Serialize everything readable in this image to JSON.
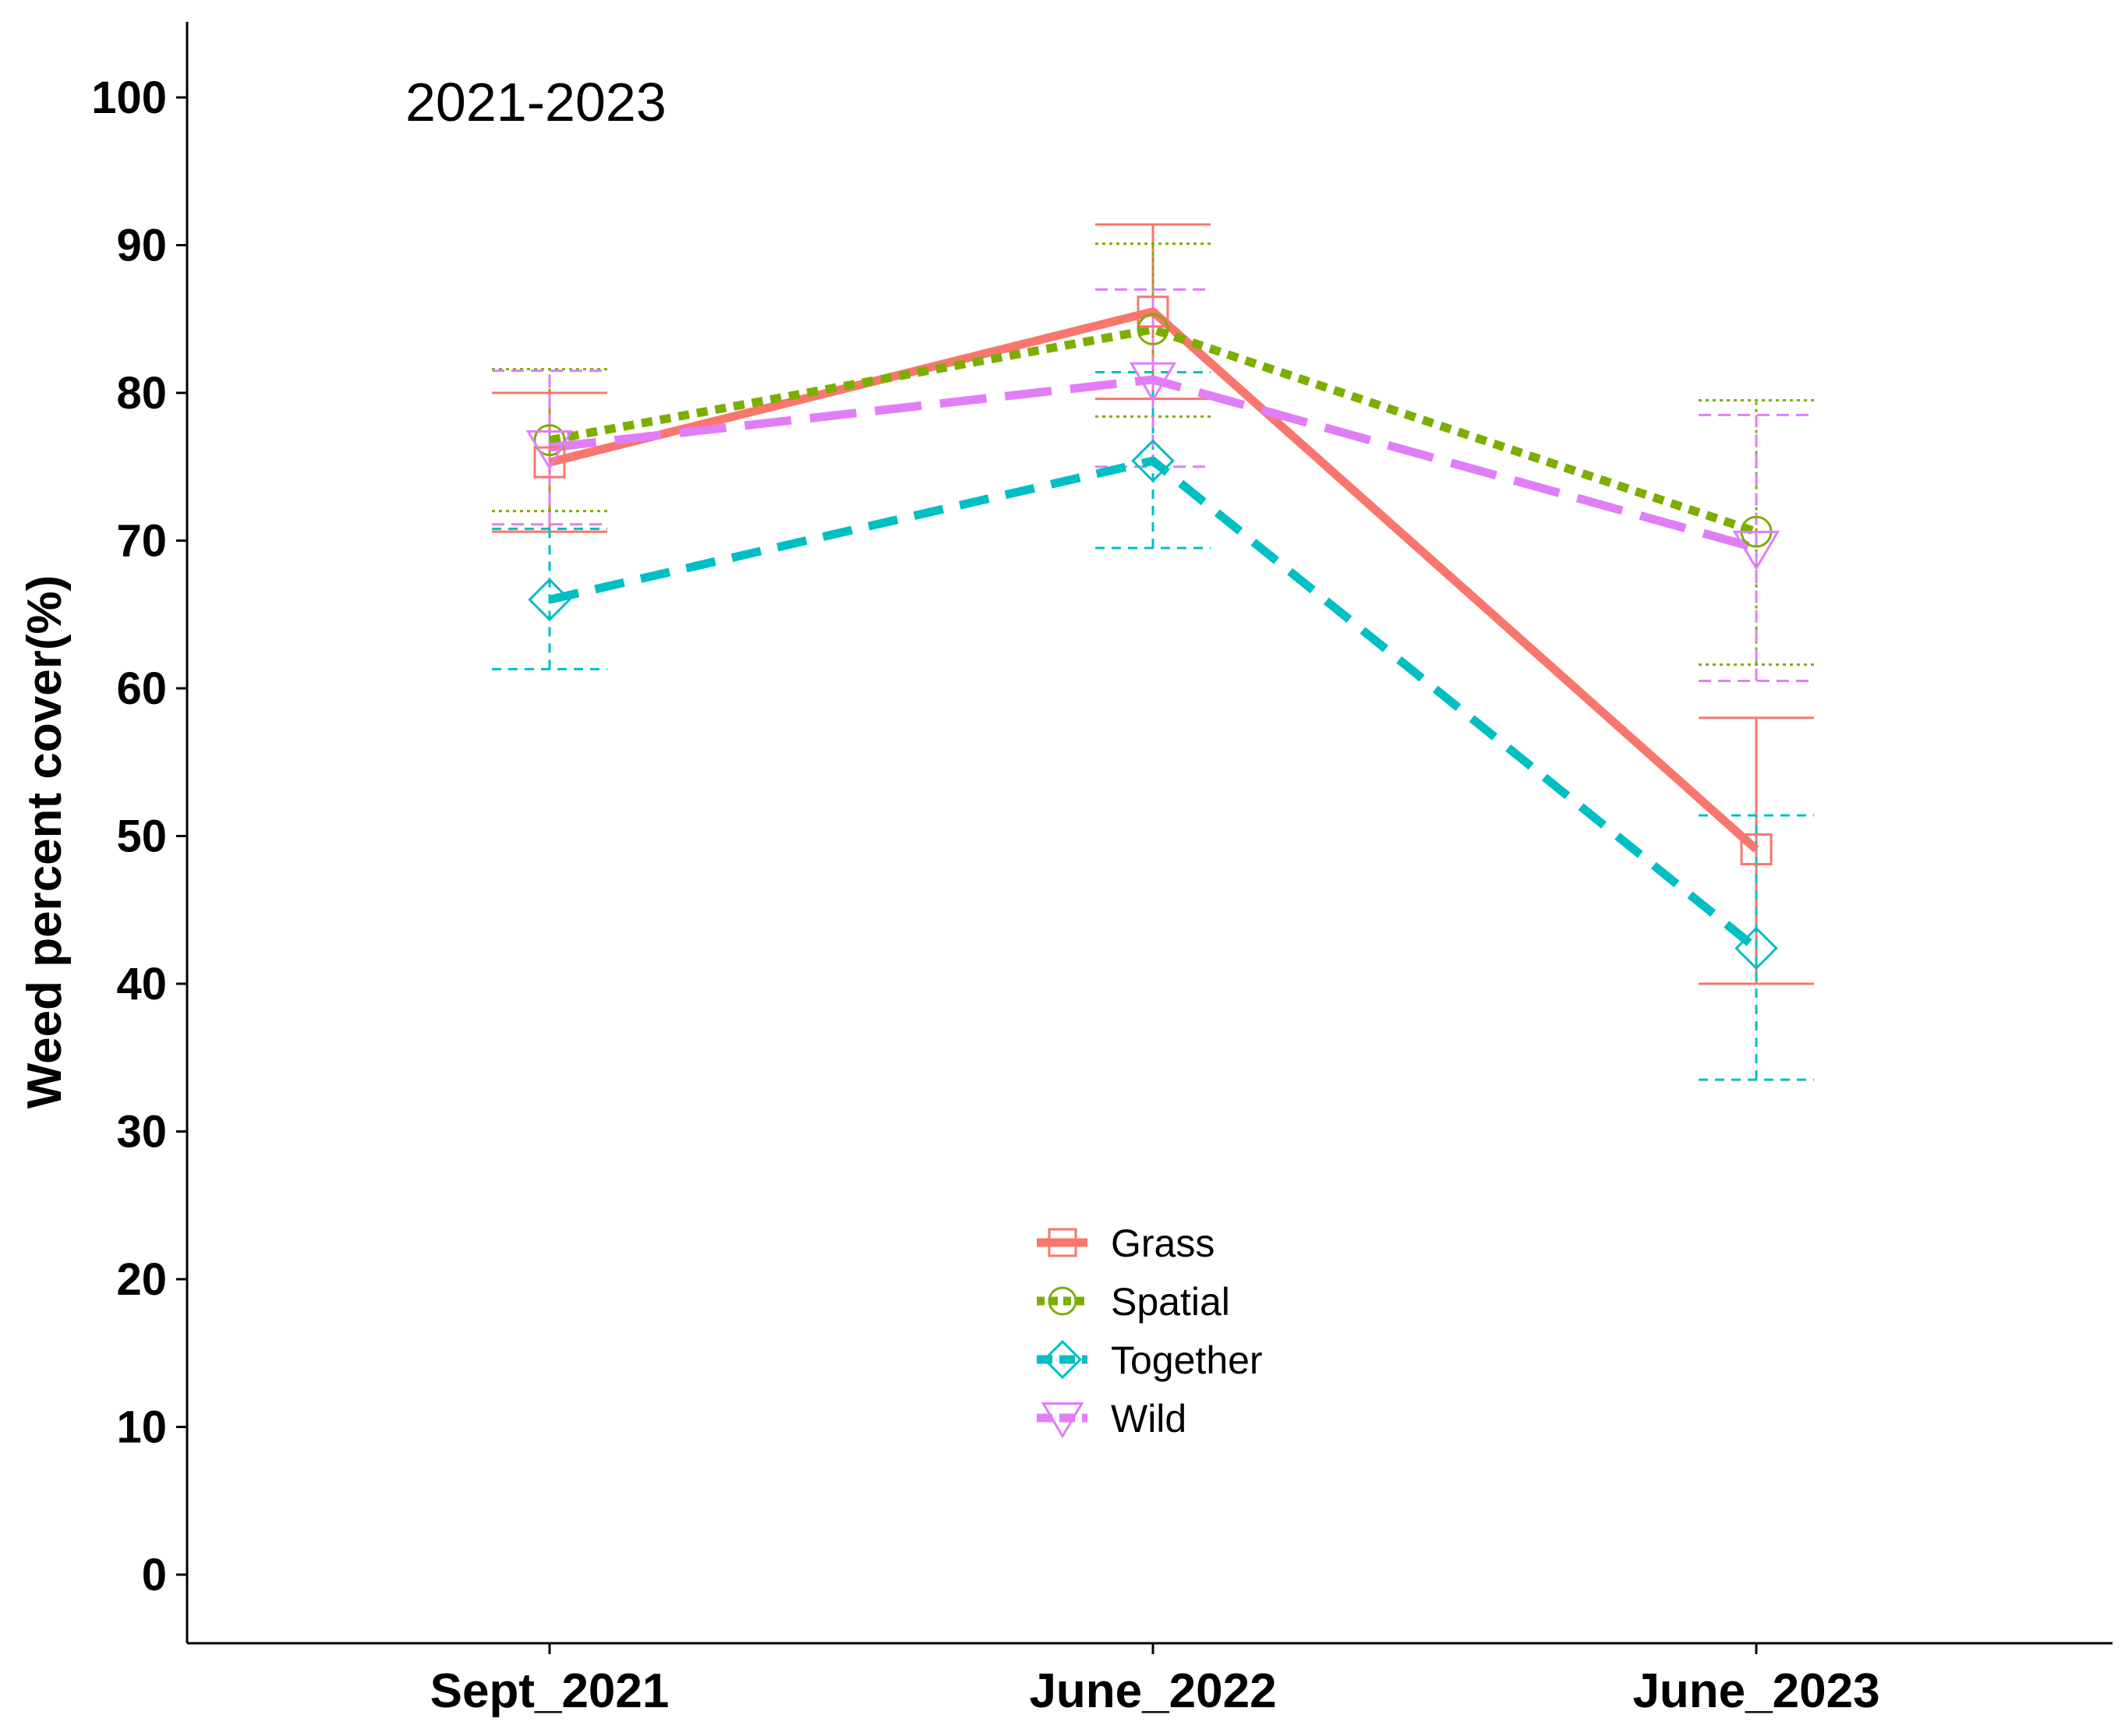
{
  "chart_data": {
    "type": "line",
    "title": "2021-2023",
    "xlabel": "",
    "ylabel": "Weed percent cover(%)",
    "categories": [
      "Sept_2021",
      "June_2022",
      "June_2023"
    ],
    "ylim": [
      -5,
      105
    ],
    "yticks": [
      0,
      10,
      20,
      30,
      40,
      50,
      60,
      70,
      80,
      90,
      100
    ],
    "legend_position": "center-bottom",
    "grid": false,
    "series": [
      {
        "name": "Grass",
        "color": "#F8766D",
        "dash": "solid",
        "marker": "square-open",
        "values": [
          75.3,
          85.5,
          49.1
        ],
        "lower": [
          70.6,
          79.6,
          40.0
        ],
        "upper": [
          80.0,
          91.4,
          58.0
        ]
      },
      {
        "name": "Spatial",
        "color": "#7CAE00",
        "dash": "dotted",
        "marker": "circle-open",
        "values": [
          76.8,
          84.3,
          70.6
        ],
        "lower": [
          72.0,
          78.4,
          61.6
        ],
        "upper": [
          81.6,
          90.1,
          79.5
        ]
      },
      {
        "name": "Together",
        "color": "#00BFC4",
        "dash": "dashed",
        "marker": "diamond-open",
        "values": [
          66.0,
          75.4,
          42.4
        ],
        "lower": [
          61.3,
          69.5,
          33.5
        ],
        "upper": [
          70.8,
          81.4,
          51.4
        ]
      },
      {
        "name": "Wild",
        "color": "#E17EF7",
        "dash": "longdash",
        "marker": "triangle-down-open",
        "values": [
          76.3,
          80.9,
          69.5
        ],
        "lower": [
          71.1,
          75.0,
          60.5
        ],
        "upper": [
          81.5,
          87.0,
          78.5
        ]
      }
    ]
  }
}
